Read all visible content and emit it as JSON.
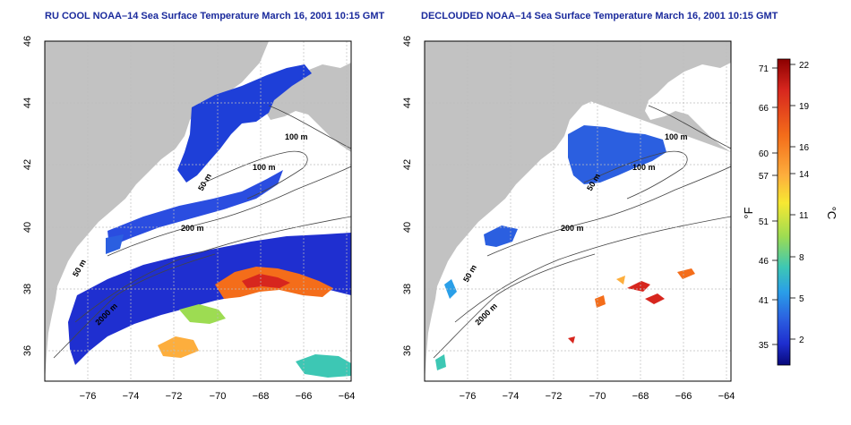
{
  "titles": {
    "left": "RU COOL NOAA–14 Sea Surface Temperature March 16, 2001 10:15 GMT",
    "right": "DECLOUDED NOAA–14 Sea Surface Temperature March 16, 2001 10:15 GMT"
  },
  "axes": {
    "x_ticks": [
      "−76",
      "−74",
      "−72",
      "−70",
      "−68",
      "−66",
      "−64"
    ],
    "x_values": [
      -76,
      -74,
      -72,
      -70,
      -68,
      -66,
      -64
    ],
    "x_range": [
      -77.2,
      -63
    ],
    "y_ticks": [
      "36",
      "38",
      "40",
      "42",
      "44",
      "46"
    ],
    "y_values": [
      36,
      38,
      40,
      42,
      44,
      46
    ],
    "y_range": [
      35,
      46
    ]
  },
  "contour_labels": {
    "left": [
      "100 m",
      "100 m",
      "50 m",
      "200 m",
      "50 m",
      "2000 m"
    ],
    "right": [
      "100 m",
      "100 m",
      "50 m",
      "200 m",
      "50 m",
      "2000 m"
    ]
  },
  "colorbar": {
    "f_label": "°F",
    "c_label": "°C",
    "f_ticks": [
      "71",
      "66",
      "60",
      "57",
      "51",
      "46",
      "41",
      "35"
    ],
    "c_ticks": [
      "22",
      "19",
      "16",
      "14",
      "11",
      "8",
      "5",
      "2"
    ],
    "colors": [
      "#8b0000",
      "#d7261e",
      "#f46d1a",
      "#fdae3d",
      "#f7e832",
      "#9ddc52",
      "#3dc7b4",
      "#2a9fe8",
      "#2b5fe0",
      "#1e2ecf",
      "#08087a"
    ]
  },
  "palette": {
    "land": "#c2c2c2",
    "ocean": "#ffffff",
    "grid": "#bdbdbd",
    "title": "#1a2a9c"
  }
}
